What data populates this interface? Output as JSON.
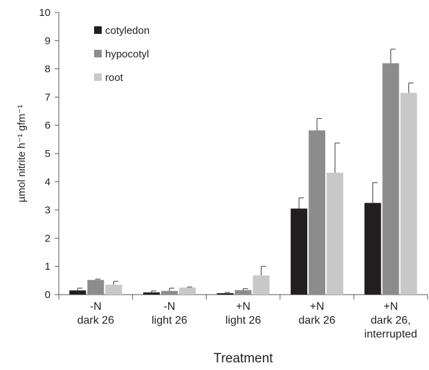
{
  "chart_data": {
    "type": "bar",
    "categories": [
      [
        "-N",
        "dark 26"
      ],
      [
        "-N",
        "light 26"
      ],
      [
        "+N",
        "light 26"
      ],
      [
        "+N",
        "dark 26"
      ],
      [
        "+N",
        "dark 26,",
        "interrupted"
      ]
    ],
    "series": [
      {
        "name": "cotyledon",
        "color": "#231f20",
        "values": [
          0.15,
          0.08,
          0.05,
          3.05,
          3.25
        ],
        "errors": [
          0.08,
          0.05,
          0.03,
          0.38,
          0.72
        ]
      },
      {
        "name": "hypocotyl",
        "color": "#8c8c8c",
        "values": [
          0.52,
          0.13,
          0.16,
          5.82,
          8.2
        ],
        "errors": [
          0.03,
          0.1,
          0.05,
          0.42,
          0.5
        ]
      },
      {
        "name": "root",
        "color": "#c8c8c8",
        "values": [
          0.35,
          0.25,
          0.68,
          4.32,
          7.15
        ],
        "errors": [
          0.12,
          0.02,
          0.32,
          1.05,
          0.35
        ]
      }
    ],
    "xlabel": "Treatment",
    "ylabel": "µmol nitrite h⁻¹ gfm⁻¹",
    "ylim": [
      0,
      10
    ],
    "yticks": [
      0,
      1,
      2,
      3,
      4,
      5,
      6,
      7,
      8,
      9,
      10
    ],
    "legend_position": "top-left",
    "grid": false
  }
}
